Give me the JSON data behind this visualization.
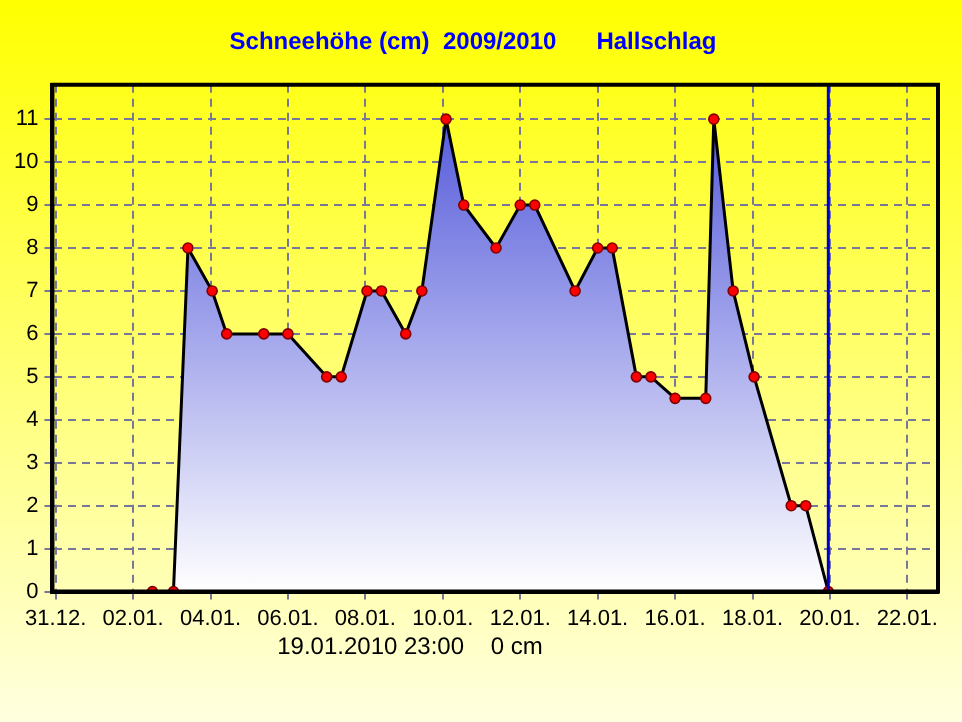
{
  "chart_data": {
    "type": "area",
    "title": "Schneehöhe (cm)  2009/2010      Hallschlag",
    "xlim": [
      "2009-12-30T22:00",
      "2010-01-22T19:00"
    ],
    "xticks": [
      {
        "value": "2009-12-31",
        "label": "31.12."
      },
      {
        "value": "2010-01-02",
        "label": "02.01."
      },
      {
        "value": "2010-01-04",
        "label": "04.01."
      },
      {
        "value": "2010-01-06",
        "label": "06.01."
      },
      {
        "value": "2010-01-08",
        "label": "08.01."
      },
      {
        "value": "2010-01-10",
        "label": "10.01."
      },
      {
        "value": "2010-01-12",
        "label": "12.01."
      },
      {
        "value": "2010-01-14",
        "label": "14.01."
      },
      {
        "value": "2010-01-16",
        "label": "16.01."
      },
      {
        "value": "2010-01-18",
        "label": "18.01."
      },
      {
        "value": "2010-01-20",
        "label": "20.01."
      },
      {
        "value": "2010-01-22",
        "label": "22.01."
      }
    ],
    "ylim": [
      0,
      11.8
    ],
    "yticks": [
      0,
      1,
      2,
      3,
      4,
      5,
      6,
      7,
      8,
      9,
      10,
      11
    ],
    "x": [
      "2010-01-02T12:00",
      "2010-01-03T01:00",
      "2010-01-03T10:00",
      "2010-01-04T01:00",
      "2010-01-04T10:00",
      "2010-01-05T09:00",
      "2010-01-06T00:00",
      "2010-01-07T00:00",
      "2010-01-07T09:00",
      "2010-01-08T01:00",
      "2010-01-08T10:00",
      "2010-01-09T01:00",
      "2010-01-09T11:00",
      "2010-01-10T02:00",
      "2010-01-10T13:00",
      "2010-01-11T09:00",
      "2010-01-12T00:00",
      "2010-01-12T09:00",
      "2010-01-13T10:00",
      "2010-01-14T00:00",
      "2010-01-14T09:00",
      "2010-01-15T00:00",
      "2010-01-15T09:00",
      "2010-01-16T00:00",
      "2010-01-16T19:00",
      "2010-01-17T00:00",
      "2010-01-17T12:00",
      "2010-01-18T01:00",
      "2010-01-19T00:00",
      "2010-01-19T09:00",
      "2010-01-19T23:00"
    ],
    "series": [
      {
        "color": "#4a50d8",
        "values": [
          0,
          0,
          8,
          7,
          6,
          6,
          6,
          5,
          5,
          7,
          7,
          6,
          7,
          11,
          9,
          8,
          9,
          9,
          7,
          8,
          8,
          5,
          5,
          4.5,
          4.5,
          11,
          7,
          5,
          2,
          2,
          0
        ]
      }
    ],
    "ref_lines": [
      {
        "axis": "x",
        "value": "2010-01-19T23:00",
        "color": "#0000cc"
      }
    ],
    "annotations": [
      "19.01.2010 23:00    0 cm"
    ],
    "grid": true,
    "legend": false,
    "marker": "circle",
    "line_style": "solid"
  }
}
